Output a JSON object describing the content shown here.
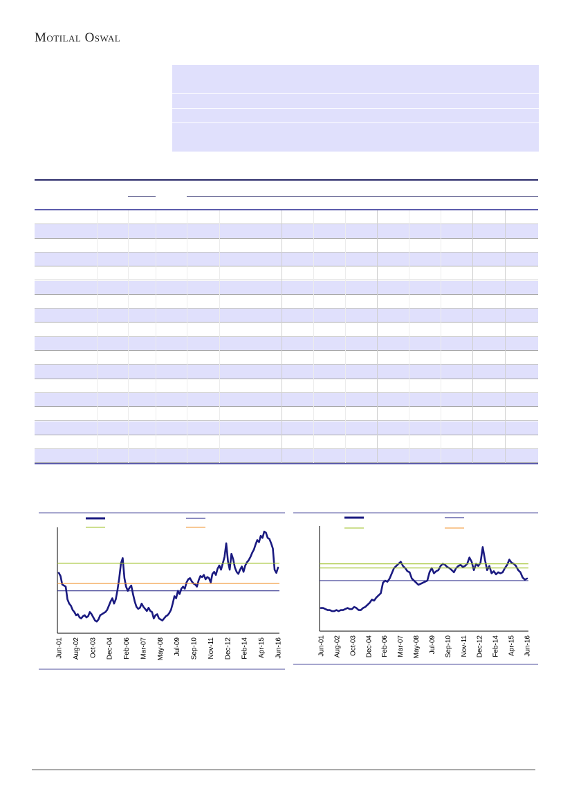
{
  "header": {
    "brand": "Motilal Oswal"
  },
  "table": {
    "row_count": 18
  },
  "charts": [
    {
      "chart_data": {
        "type": "line",
        "title": "",
        "xlabel": "",
        "ylabel": "",
        "x_tick_labels": [
          "Jun-01",
          "Aug-02",
          "Oct-03",
          "Dec-04",
          "Feb-06",
          "Mar-07",
          "May-08",
          "Jul-09",
          "Sep-10",
          "Nov-11",
          "Dec-12",
          "Feb-14",
          "Apr-15",
          "Jun-16"
        ],
        "ylim": [
          0,
          100
        ],
        "series": [
          {
            "style": "thick",
            "color": "#1a1a80",
            "values": [
              57,
              54,
              46,
              45,
              44,
              32,
              28,
              26,
              22,
              20,
              17,
              18,
              15,
              14,
              16,
              17,
              15,
              16,
              20,
              18,
              15,
              12,
              11,
              13,
              17,
              18,
              19,
              20,
              22,
              26,
              30,
              33,
              28,
              32,
              41,
              52,
              66,
              71,
              52,
              44,
              40,
              43,
              45,
              37,
              30,
              25,
              23,
              24,
              28,
              25,
              23,
              21,
              24,
              21,
              20,
              14,
              17,
              18,
              14,
              13,
              12,
              14,
              16,
              17,
              19,
              22,
              28,
              35,
              33,
              40,
              37,
              42,
              44,
              42,
              48,
              51,
              52,
              49,
              47,
              46,
              44,
              50,
              54,
              53,
              55,
              51,
              53,
              52,
              48,
              56,
              58,
              55,
              61,
              64,
              60,
              66,
              72,
              85,
              68,
              60,
              75,
              70,
              62,
              58,
              56,
              60,
              63,
              58,
              64,
              67,
              69,
              72,
              76,
              79,
              84,
              88,
              86,
              92,
              90,
              96,
              95,
              90,
              89,
              85,
              80,
              60,
              57,
              62
            ]
          },
          {
            "style": "thin",
            "color": "#1a1a80",
            "values": [
              40
            ]
          },
          {
            "style": "thin",
            "color": "#9bbf1f",
            "values": [
              66
            ]
          },
          {
            "style": "thin",
            "color": "#f0902a",
            "values": [
              47
            ]
          }
        ]
      }
    },
    {
      "chart_data": {
        "type": "line",
        "title": "",
        "xlabel": "",
        "ylabel": "",
        "x_tick_labels": [
          "Jun-01",
          "Aug-02",
          "Oct-03",
          "Dec-04",
          "Feb-06",
          "Mar-07",
          "May-08",
          "Jul-09",
          "Sep-10",
          "Nov-11",
          "Dec-12",
          "Feb-14",
          "Apr-15",
          "Jun-16"
        ],
        "ylim": [
          0,
          100
        ],
        "series": [
          {
            "style": "thick",
            "color": "#1a1a80",
            "values": [
              22,
              22,
              21,
              20,
              20,
              19,
              19,
              20,
              19,
              20,
              20,
              21,
              22,
              21,
              21,
              23,
              22,
              20,
              20,
              22,
              23,
              25,
              27,
              30,
              29,
              32,
              34,
              36,
              46,
              48,
              47,
              50,
              55,
              60,
              62,
              64,
              66,
              62,
              60,
              57,
              56,
              50,
              48,
              46,
              44,
              45,
              46,
              47,
              48,
              56,
              60,
              55,
              57,
              58,
              62,
              64,
              63,
              61,
              60,
              58,
              56,
              60,
              62,
              63,
              61,
              62,
              64,
              70,
              66,
              58,
              64,
              62,
              65,
              80,
              68,
              58,
              62,
              55,
              57,
              54,
              56,
              55,
              56,
              60,
              63,
              68,
              65,
              64,
              62,
              58,
              56,
              51,
              49,
              50
            ]
          },
          {
            "style": "thin",
            "color": "#1a1a80",
            "values": [
              48
            ]
          },
          {
            "style": "thin",
            "color": "#9bbf1f",
            "values": [
              64
            ]
          },
          {
            "style": "thin",
            "color": "#9bbf1f",
            "values": [
              60
            ]
          }
        ]
      }
    }
  ],
  "colors": {
    "band": "#e0e0fc",
    "row_stripe": "#e0e0fc",
    "rule_dark": "#2a2a6a",
    "rule_accent": "#5c5cac",
    "axis": "#000000"
  }
}
